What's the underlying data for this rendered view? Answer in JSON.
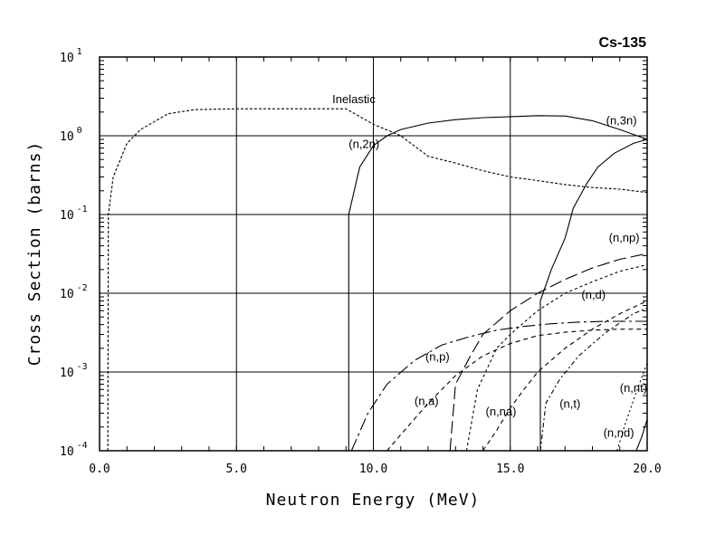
{
  "chart_data": {
    "type": "line",
    "title": "Cs-135",
    "xlabel": "Neutron Energy (MeV)",
    "ylabel": "Cross Section (barns)",
    "xlim": [
      0,
      20
    ],
    "ylim": [
      0.0001,
      10
    ],
    "yscale": "log",
    "grid": true,
    "x_ticks": [
      {
        "value": 0,
        "label": "0.0"
      },
      {
        "value": 5,
        "label": "5.0"
      },
      {
        "value": 10,
        "label": "10.0"
      },
      {
        "value": 15,
        "label": "15.0"
      },
      {
        "value": 20,
        "label": "20.0"
      }
    ],
    "y_ticks": [
      {
        "value": 10,
        "base": "10",
        "exp": "1"
      },
      {
        "value": 1,
        "base": "10",
        "exp": "0"
      },
      {
        "value": 0.1,
        "base": "10",
        "exp": "-1"
      },
      {
        "value": 0.01,
        "base": "10",
        "exp": "-2"
      },
      {
        "value": 0.001,
        "base": "10",
        "exp": "-3"
      },
      {
        "value": 0.0001,
        "base": "10",
        "exp": "-4"
      }
    ],
    "series": [
      {
        "name": "Inelastic",
        "dash": "3,2",
        "label_at": [
          8.5,
          2.6
        ],
        "points": [
          [
            0.3,
            0.0001
          ],
          [
            0.32,
            0.1
          ],
          [
            0.5,
            0.3
          ],
          [
            1.0,
            0.8
          ],
          [
            1.5,
            1.2
          ],
          [
            2.5,
            1.9
          ],
          [
            3.5,
            2.15
          ],
          [
            5,
            2.2
          ],
          [
            6,
            2.2
          ],
          [
            7,
            2.2
          ],
          [
            9,
            2.2
          ],
          [
            10,
            1.4
          ],
          [
            11,
            1.0
          ],
          [
            12,
            0.55
          ],
          [
            13,
            0.45
          ],
          [
            14,
            0.36
          ],
          [
            15,
            0.3
          ],
          [
            16,
            0.27
          ],
          [
            17,
            0.24
          ],
          [
            18,
            0.22
          ],
          [
            19,
            0.21
          ],
          [
            20,
            0.19
          ]
        ]
      },
      {
        "name": "(n,2n)",
        "dash": "",
        "label_at": [
          9.1,
          0.7
        ],
        "points": [
          [
            9.1,
            0.0001
          ],
          [
            9.1,
            0.1
          ],
          [
            9.5,
            0.4
          ],
          [
            10,
            0.75
          ],
          [
            10.5,
            1.0
          ],
          [
            11,
            1.2
          ],
          [
            12,
            1.45
          ],
          [
            13,
            1.6
          ],
          [
            14,
            1.7
          ],
          [
            15,
            1.75
          ],
          [
            16,
            1.8
          ],
          [
            17,
            1.78
          ],
          [
            18,
            1.55
          ],
          [
            19,
            1.2
          ],
          [
            20,
            0.9
          ]
        ]
      },
      {
        "name": "(n,3n)",
        "dash": "",
        "label_at": [
          18.5,
          1.4
        ],
        "points": [
          [
            16.1,
            0.0001
          ],
          [
            16.1,
            0.008
          ],
          [
            16.5,
            0.02
          ],
          [
            17,
            0.05
          ],
          [
            17.3,
            0.12
          ],
          [
            17.8,
            0.25
          ],
          [
            18.2,
            0.4
          ],
          [
            18.8,
            0.6
          ],
          [
            19.5,
            0.8
          ],
          [
            20,
            0.9
          ]
        ]
      },
      {
        "name": "(n,np)",
        "dash": "14,5",
        "label_at": [
          18.6,
          0.045
        ],
        "points": [
          [
            12.8,
            0.0001
          ],
          [
            13.0,
            0.0007
          ],
          [
            13.5,
            0.0015
          ],
          [
            14,
            0.003
          ],
          [
            15,
            0.006
          ],
          [
            16,
            0.01
          ],
          [
            17,
            0.015
          ],
          [
            18,
            0.021
          ],
          [
            19,
            0.027
          ],
          [
            20,
            0.032
          ]
        ]
      },
      {
        "name": "(n,d)",
        "dash": "3,3",
        "label_at": [
          17.6,
          0.0085
        ],
        "points": [
          [
            13.4,
            0.0001
          ],
          [
            13.8,
            0.0006
          ],
          [
            14.5,
            0.002
          ],
          [
            15,
            0.003
          ],
          [
            16,
            0.006
          ],
          [
            17,
            0.01
          ],
          [
            18,
            0.014
          ],
          [
            19,
            0.019
          ],
          [
            20,
            0.023
          ]
        ]
      },
      {
        "name": "(n,p)",
        "dash": "14,4,3,4",
        "label_at": [
          11.9,
          0.0014
        ],
        "points": [
          [
            9.2,
            0.0001
          ],
          [
            9.8,
            0.0003
          ],
          [
            10.5,
            0.0007
          ],
          [
            11.5,
            0.0014
          ],
          [
            12.5,
            0.0022
          ],
          [
            13.5,
            0.0028
          ],
          [
            14.5,
            0.0034
          ],
          [
            15.5,
            0.0038
          ],
          [
            16.5,
            0.0041
          ],
          [
            17.5,
            0.0043
          ],
          [
            18.5,
            0.0044
          ],
          [
            20,
            0.0044
          ]
        ]
      },
      {
        "name": "(n,a)",
        "dash": "5,4",
        "label_at": [
          11.5,
          0.00038
        ],
        "points": [
          [
            10.5,
            0.0001
          ],
          [
            11,
            0.00016
          ],
          [
            12,
            0.0004
          ],
          [
            13,
            0.0009
          ],
          [
            14,
            0.0016
          ],
          [
            15,
            0.0023
          ],
          [
            16,
            0.0029
          ],
          [
            17,
            0.0032
          ],
          [
            18,
            0.0034
          ],
          [
            19,
            0.0035
          ],
          [
            20,
            0.0035
          ]
        ]
      },
      {
        "name": "(n,na)",
        "dash": "5,4",
        "label_at": [
          14.1,
          0.00028
        ],
        "points": [
          [
            14.0,
            0.0001
          ],
          [
            14.5,
            0.00018
          ],
          [
            15,
            0.00035
          ],
          [
            15.5,
            0.0006
          ],
          [
            16,
            0.001
          ],
          [
            17,
            0.002
          ],
          [
            18,
            0.0035
          ],
          [
            19,
            0.0055
          ],
          [
            20,
            0.008
          ]
        ]
      },
      {
        "name": "(n,t)",
        "dash": "5,3,2,3",
        "label_at": [
          16.8,
          0.00035
        ],
        "points": [
          [
            16.1,
            0.0001
          ],
          [
            16.3,
            0.0004
          ],
          [
            16.8,
            0.0008
          ],
          [
            17.5,
            0.0016
          ],
          [
            18.5,
            0.0032
          ],
          [
            19.5,
            0.0055
          ],
          [
            20,
            0.0065
          ]
        ]
      },
      {
        "name": "(n,nt)",
        "dash": "2,3",
        "label_at": [
          19.0,
          0.00056
        ],
        "points": [
          [
            18.9,
            0.0001
          ],
          [
            19.2,
            0.00022
          ],
          [
            19.6,
            0.00055
          ],
          [
            20,
            0.0013
          ]
        ]
      },
      {
        "name": "(n,nd)",
        "dash": "",
        "label_at": [
          18.4,
          0.00015
        ],
        "points": [
          [
            19.6,
            0.0001
          ],
          [
            19.8,
            0.00015
          ],
          [
            20,
            0.00025
          ]
        ]
      }
    ]
  }
}
